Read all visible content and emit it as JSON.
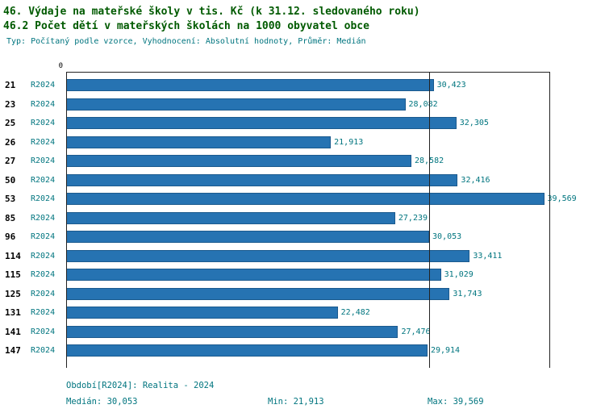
{
  "page": {
    "title_line1": "46. Výdaje na mateřské školy v tis. Kč (k 31.12. sledovaného roku)",
    "title_line2": "46.2 Počet dětí v mateřských školách na 1000 obyvatel obce",
    "subtitle": "Typ: Počítaný podle vzorce, Vyhodnocení: Absolutní hodnoty, Průměr: Medián"
  },
  "colors": {
    "bar": "#2673b2",
    "bar_border": "#1b5a8e",
    "title_green": "#005a00",
    "teal": "#00757f",
    "axis": "#222222"
  },
  "chart_data": {
    "type": "bar",
    "orientation": "horizontal",
    "title": "46.2 Počet dětí v mateřských školách na 1000 obyvatel obce",
    "x_axis": {
      "zero_label": "0",
      "min": 0,
      "max": 40,
      "grid": "median-line-only"
    },
    "median_line_value": 30.053,
    "legend_position": "none",
    "categories": [
      "21",
      "23",
      "25",
      "26",
      "27",
      "50",
      "53",
      "85",
      "96",
      "114",
      "115",
      "125",
      "131",
      "141",
      "147"
    ],
    "rows": [
      {
        "category": "21",
        "period": "R2024",
        "value": 30.423,
        "value_label": "30,423"
      },
      {
        "category": "23",
        "period": "R2024",
        "value": 28.082,
        "value_label": "28,082"
      },
      {
        "category": "25",
        "period": "R2024",
        "value": 32.305,
        "value_label": "32,305"
      },
      {
        "category": "26",
        "period": "R2024",
        "value": 21.913,
        "value_label": "21,913"
      },
      {
        "category": "27",
        "period": "R2024",
        "value": 28.582,
        "value_label": "28,582"
      },
      {
        "category": "50",
        "period": "R2024",
        "value": 32.416,
        "value_label": "32,416"
      },
      {
        "category": "53",
        "period": "R2024",
        "value": 39.569,
        "value_label": "39,569"
      },
      {
        "category": "85",
        "period": "R2024",
        "value": 27.239,
        "value_label": "27,239"
      },
      {
        "category": "96",
        "period": "R2024",
        "value": 30.053,
        "value_label": "30,053"
      },
      {
        "category": "114",
        "period": "R2024",
        "value": 33.411,
        "value_label": "33,411"
      },
      {
        "category": "115",
        "period": "R2024",
        "value": 31.029,
        "value_label": "31,029"
      },
      {
        "category": "125",
        "period": "R2024",
        "value": 31.743,
        "value_label": "31,743"
      },
      {
        "category": "131",
        "period": "R2024",
        "value": 22.482,
        "value_label": "22,482"
      },
      {
        "category": "141",
        "period": "R2024",
        "value": 27.476,
        "value_label": "27,476"
      },
      {
        "category": "147",
        "period": "R2024",
        "value": 29.914,
        "value_label": "29,914"
      }
    ]
  },
  "footer": {
    "period_line": "Období[R2024]: Realita - 2024",
    "median": "Medián: 30,053",
    "min": "Min: 21,913",
    "max": "Max: 39,569"
  }
}
